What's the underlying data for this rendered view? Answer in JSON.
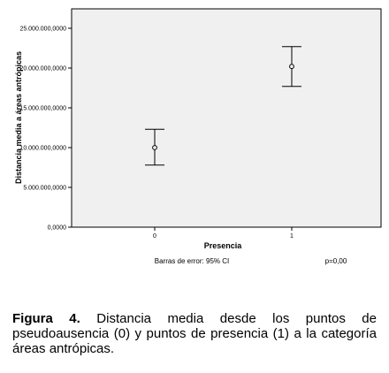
{
  "chart_data": {
    "type": "errorbar",
    "x_categories": [
      "0",
      "1"
    ],
    "means": [
      10000000,
      20200000
    ],
    "ci_lower": [
      7800000,
      17700000
    ],
    "ci_upper": [
      12300000,
      22700000
    ],
    "xlabel": "Presencia",
    "ylabel": "Distancia media a áreas antrópicas",
    "ylim": [
      0,
      27000000
    ],
    "yticks": [
      0,
      5000000,
      10000000,
      15000000,
      20000000,
      25000000
    ],
    "ytick_labels": [
      "0,0000",
      "5.000.000,0000",
      "10.000.000,0000",
      "15.000.000,0000",
      "20.000.000,0000",
      "25.000.000,0000"
    ],
    "plot_background": "#f0f0f0",
    "grid": false
  },
  "footnote": {
    "error_bars": "Barras de error: 95% CI",
    "pvalue": "p=0,00"
  },
  "caption": {
    "label": "Figura 4.",
    "text": " Distancia media desde los puntos de pseudoausencia (0) y puntos de presencia (1) a la categoría áreas antrópicas."
  }
}
